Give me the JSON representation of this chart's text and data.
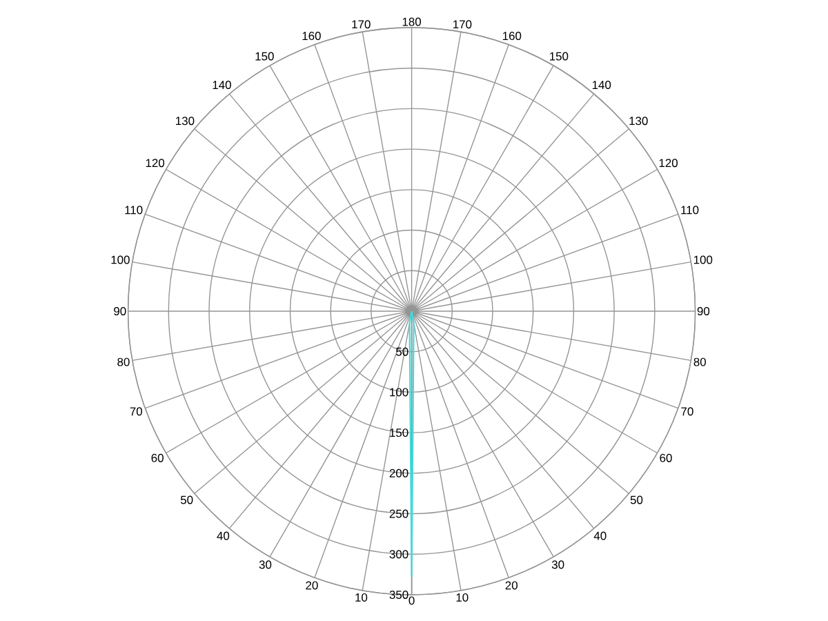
{
  "chart_data": {
    "type": "radar",
    "categories": [
      "180",
      "170",
      "160",
      "150",
      "140",
      "130",
      "120",
      "110",
      "100",
      "90",
      "80",
      "70",
      "60",
      "50",
      "40",
      "30",
      "20",
      "10",
      "0",
      "10",
      "20",
      "30",
      "40",
      "50",
      "60",
      "70",
      "80",
      "90",
      "100",
      "110",
      "120",
      "130",
      "140",
      "150",
      "160",
      "170"
    ],
    "series": [
      {
        "color": "#45d9d9",
        "values": [
          0,
          0,
          0,
          0,
          0,
          0,
          0,
          0,
          0,
          0,
          0,
          0,
          0,
          0,
          0,
          0,
          0,
          15,
          328,
          15,
          0,
          0,
          0,
          0,
          0,
          0,
          0,
          0,
          0,
          0,
          0,
          0,
          0,
          0,
          0,
          0
        ]
      }
    ],
    "ylim": [
      0,
      350
    ],
    "yticks": [
      50,
      100,
      150,
      200,
      250,
      300,
      350
    ],
    "grid": true
  }
}
